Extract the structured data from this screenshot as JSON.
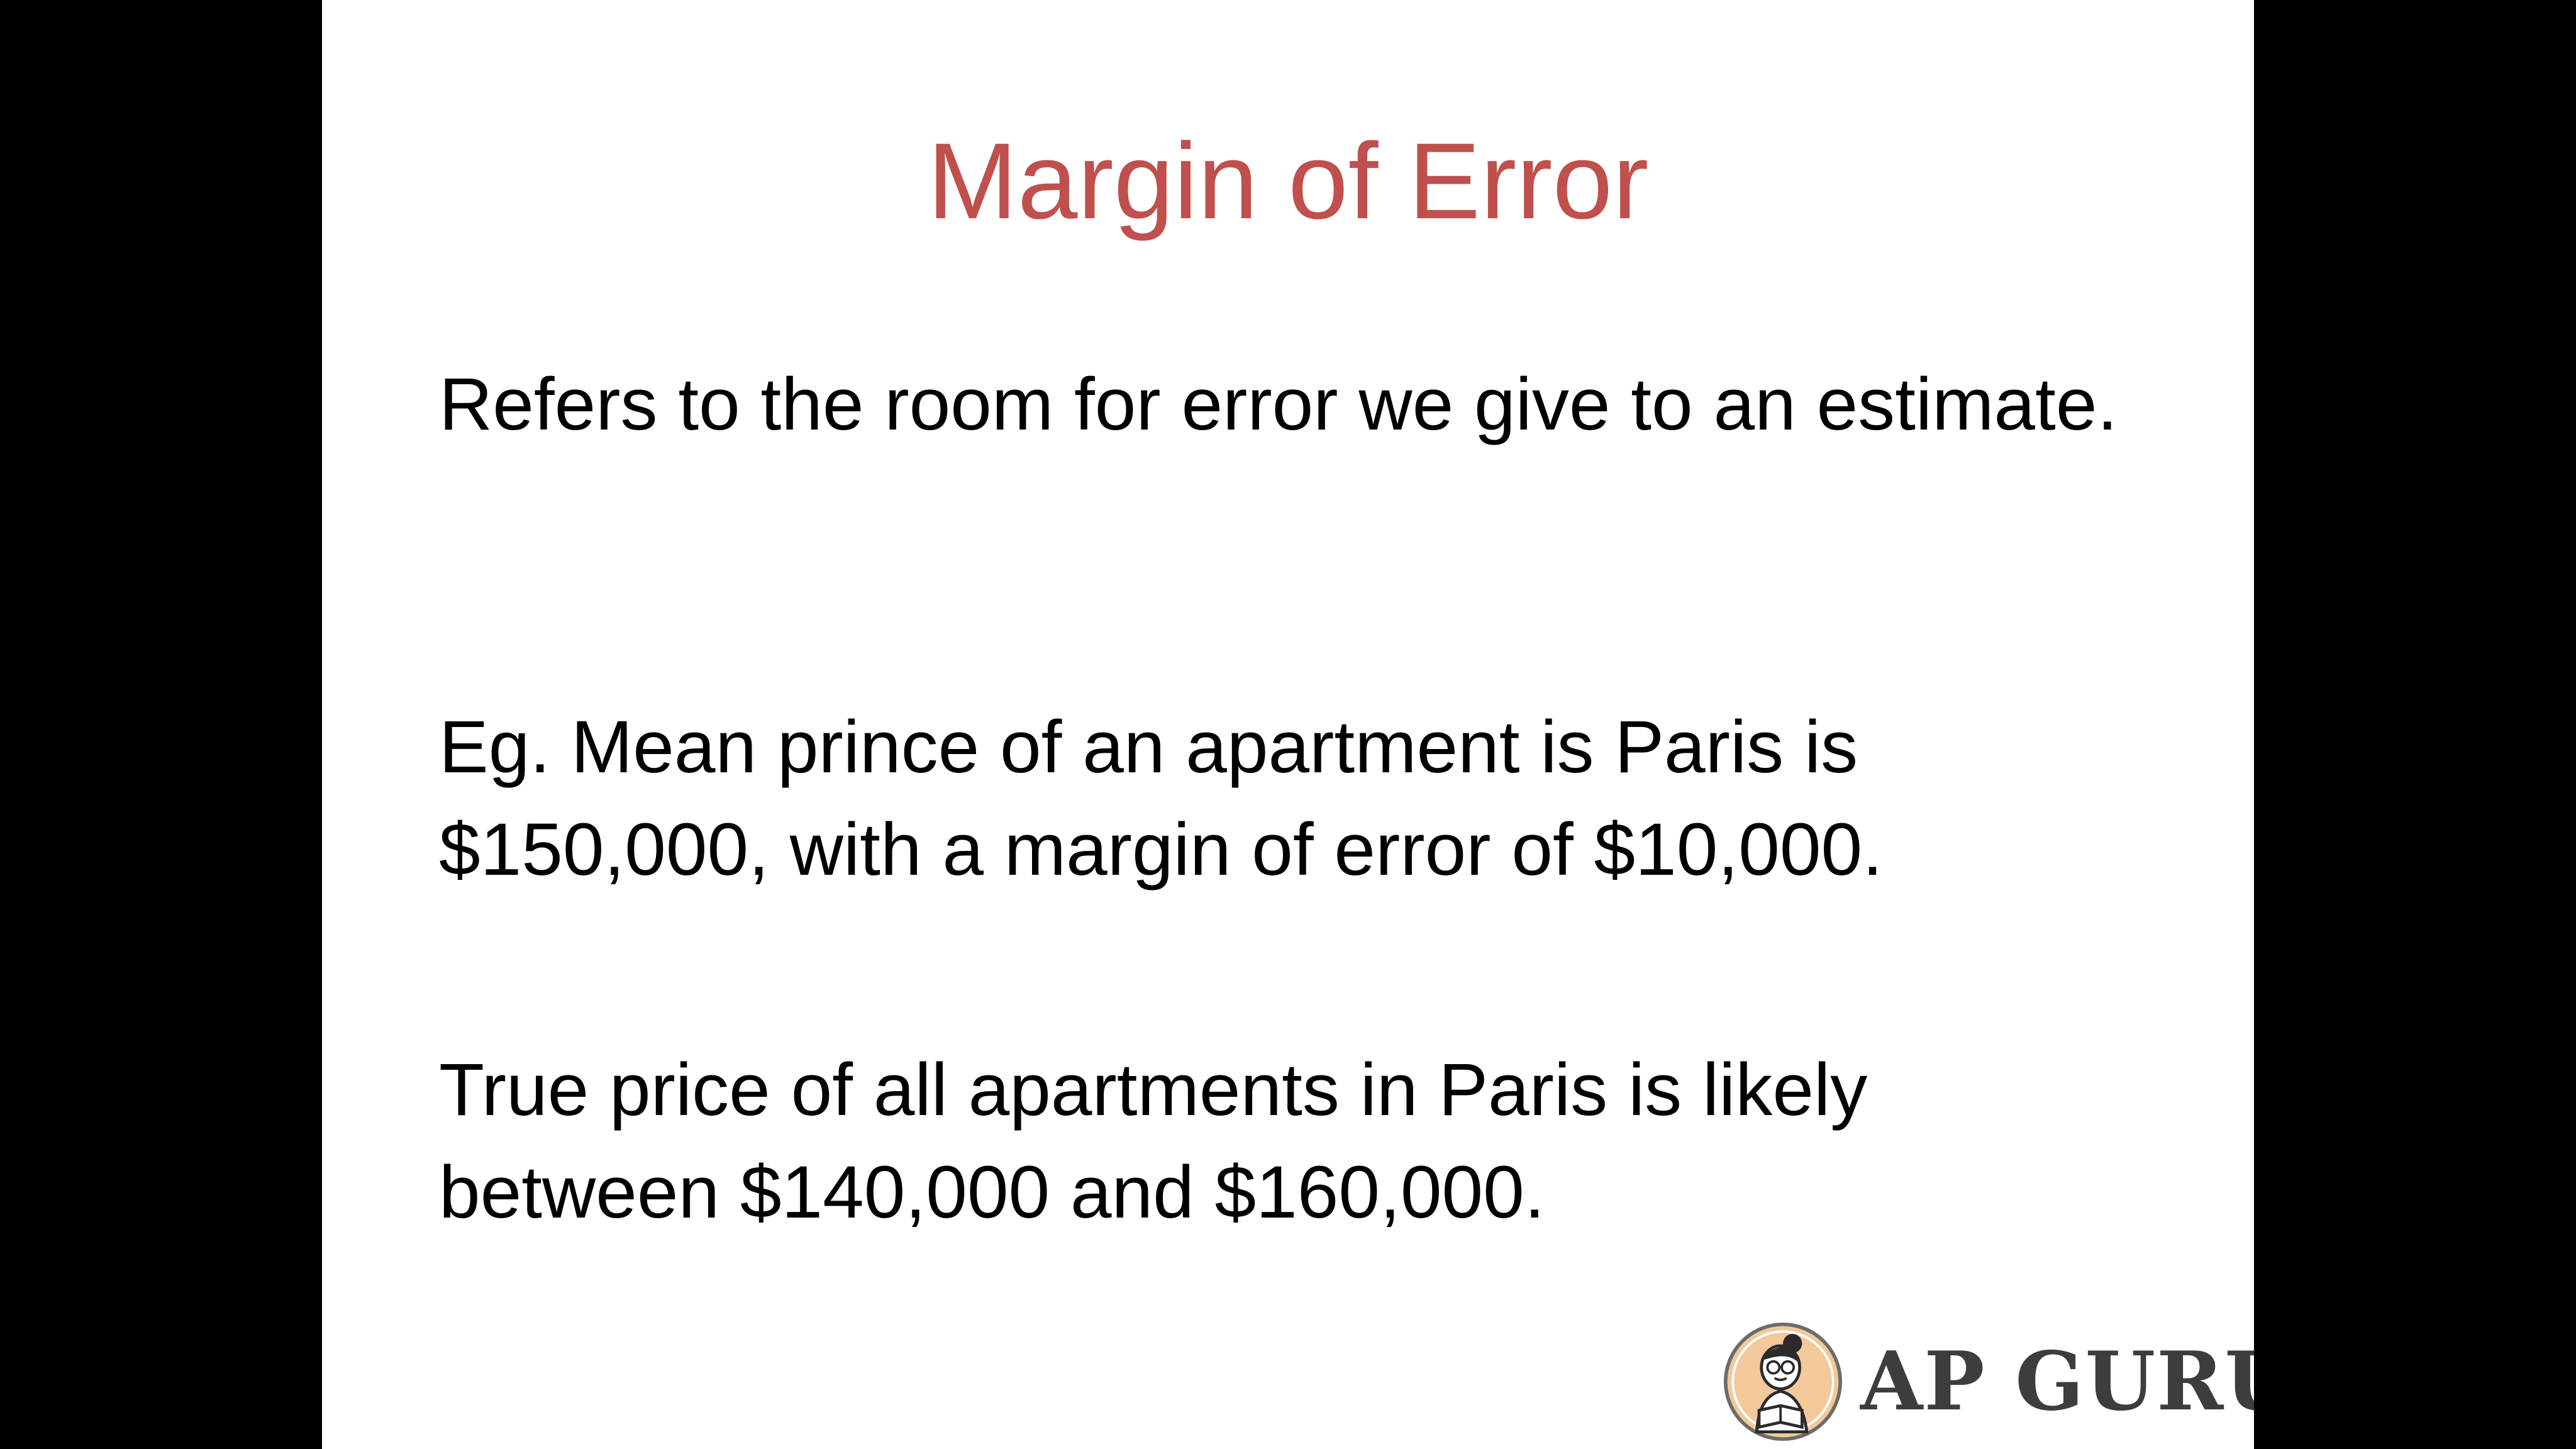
{
  "slide": {
    "title": "Margin of Error",
    "paragraphs": [
      "Refers to the room for error we give to an estimate.",
      "Eg. Mean prince of an apartment is Paris is $150,000, with a margin of error of $10,000.",
      "True price of all apartments in Paris is likely between $140,000 and $160,000."
    ]
  },
  "logo": {
    "icon": "reader-mascot-icon",
    "text": "AP GURU"
  },
  "colors": {
    "background": "#000000",
    "slide": "#ffffff",
    "title": "#c0504d",
    "body_text": "#000000",
    "logo_text": "#3d3d3d",
    "logo_badge": "#f3c89a"
  }
}
